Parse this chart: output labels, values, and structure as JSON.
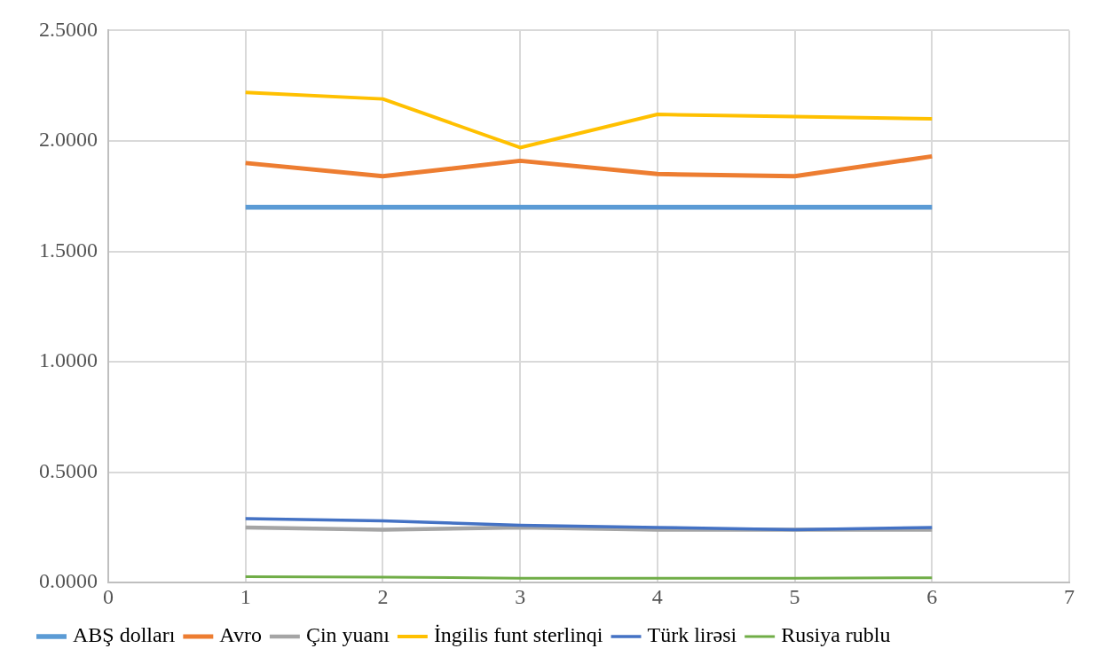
{
  "chart_data": {
    "type": "line",
    "x": [
      1,
      2,
      3,
      4,
      5,
      6
    ],
    "series": [
      {
        "name": "ABŞ dolları",
        "color": "#5b9bd5",
        "values": [
          1.7,
          1.7,
          1.7,
          1.7,
          1.7,
          1.7
        ]
      },
      {
        "name": "Avro",
        "color": "#ed7d31",
        "values": [
          1.9,
          1.84,
          1.91,
          1.85,
          1.84,
          1.93
        ]
      },
      {
        "name": "Çin yuanı",
        "color": "#a5a5a5",
        "values": [
          0.25,
          0.24,
          0.25,
          0.24,
          0.24,
          0.24
        ]
      },
      {
        "name": "İngilis funt sterlinqi",
        "color": "#ffc000",
        "values": [
          2.22,
          2.19,
          1.97,
          2.12,
          2.11,
          2.1
        ]
      },
      {
        "name": "Türk lirəsi",
        "color": "#4472c4",
        "values": [
          0.29,
          0.28,
          0.26,
          0.25,
          0.24,
          0.25
        ]
      },
      {
        "name": "Rusiya rublu",
        "color": "#70ad47",
        "values": [
          0.027,
          0.025,
          0.02,
          0.02,
          0.02,
          0.022
        ]
      }
    ],
    "xlim": [
      0,
      7
    ],
    "xticks": [
      0,
      1,
      2,
      3,
      4,
      5,
      6,
      7
    ],
    "ylim": [
      0,
      2.5
    ],
    "yticks": [
      {
        "value": 0,
        "label": "0.0000"
      },
      {
        "value": 0.5,
        "label": "0.5000"
      },
      {
        "value": 1,
        "label": "1.0000"
      },
      {
        "value": 1.5,
        "label": "1.5000"
      },
      {
        "value": 2,
        "label": "2.0000"
      },
      {
        "value": 2.5,
        "label": "2.5000"
      }
    ],
    "grid": true,
    "legend": "bottom",
    "marker": "none",
    "line_style": "solid"
  }
}
